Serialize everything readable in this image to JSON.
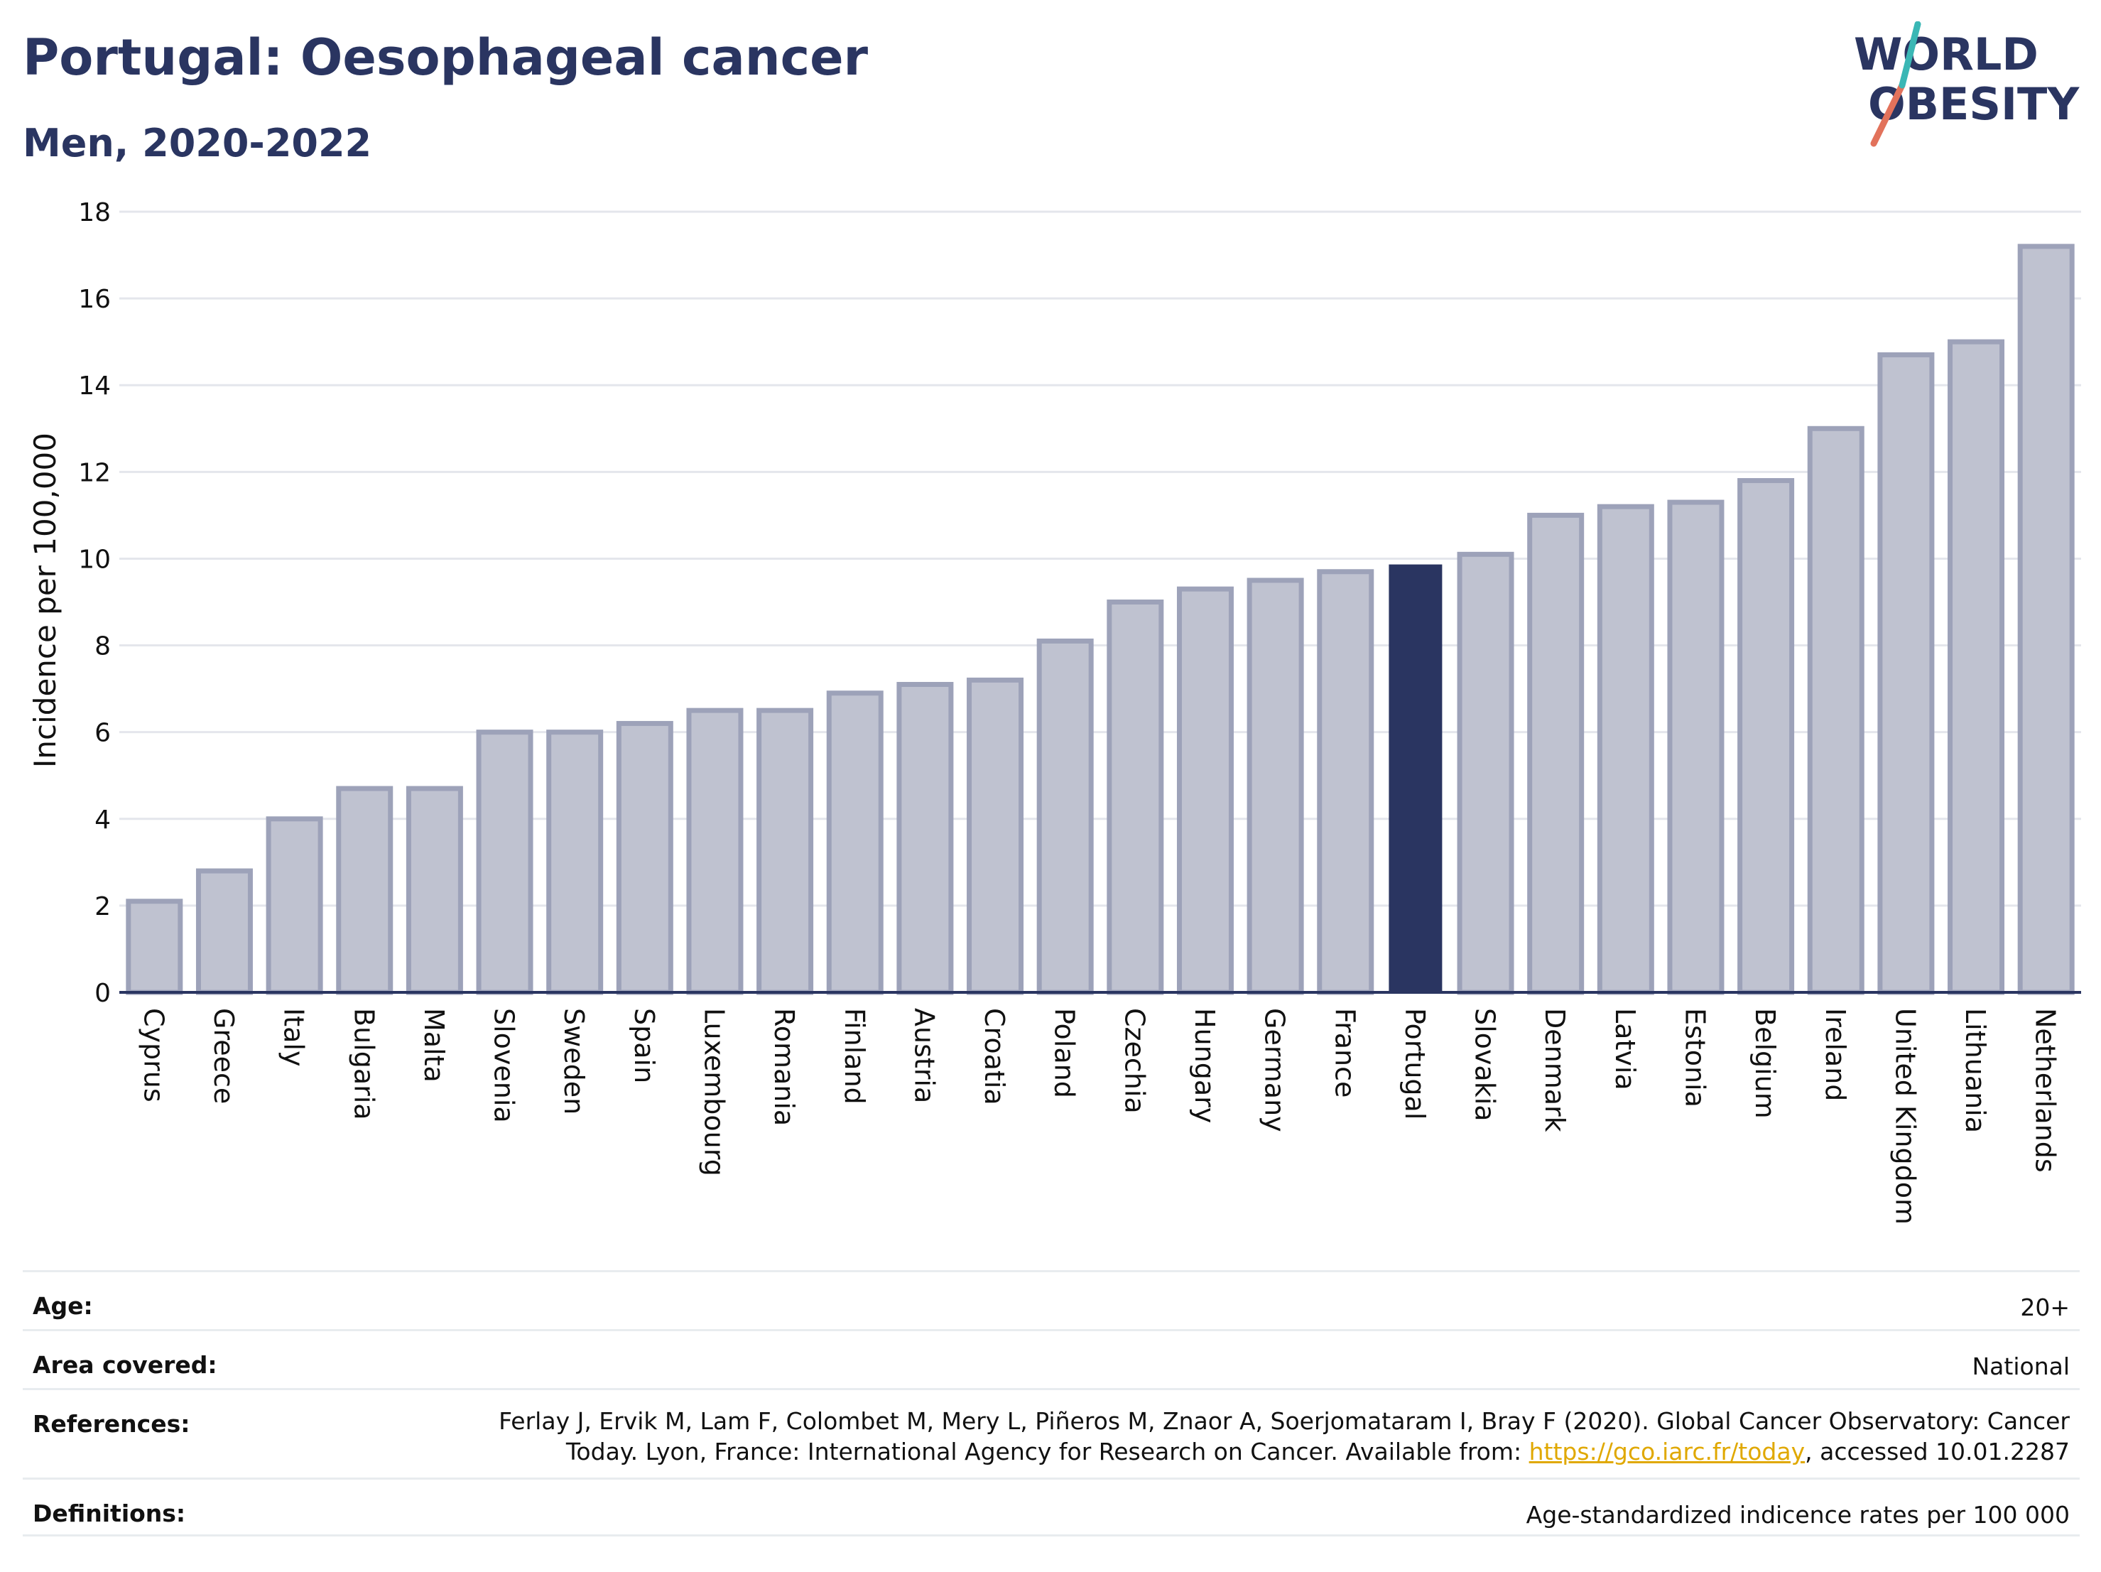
{
  "header": {
    "title": "Portugal: Oesophageal cancer",
    "subtitle": "Men, 2020-2022"
  },
  "logo": {
    "line1": "WORLD",
    "line2": "OBESITY",
    "colors": [
      "#2a3561",
      "#e2725b",
      "#3ab7b5"
    ]
  },
  "chart_data": {
    "type": "bar",
    "ylabel": "Incidence per 100,000",
    "xlabel": "",
    "ylim": [
      0,
      18
    ],
    "yticks": [
      0,
      2,
      4,
      6,
      8,
      10,
      12,
      14,
      16,
      18
    ],
    "grid": true,
    "highlight": "Portugal",
    "colors": {
      "bar": "#bfc2d0",
      "bar_edge": "#9da2b9",
      "highlight": "#2a3561",
      "grid": "#e4e6ec",
      "axis": "#2a3561"
    },
    "categories": [
      "Cyprus",
      "Greece",
      "Italy",
      "Bulgaria",
      "Malta",
      "Slovenia",
      "Sweden",
      "Spain",
      "Luxembourg",
      "Romania",
      "Finland",
      "Austria",
      "Croatia",
      "Poland",
      "Czechia",
      "Hungary",
      "Germany",
      "France",
      "Portugal",
      "Slovakia",
      "Denmark",
      "Latvia",
      "Estonia",
      "Belgium",
      "Ireland",
      "United Kingdom",
      "Lithuania",
      "Netherlands"
    ],
    "values": [
      2.1,
      2.8,
      4.0,
      4.7,
      4.7,
      6.0,
      6.0,
      6.2,
      6.5,
      6.5,
      6.9,
      7.1,
      7.2,
      8.1,
      9.0,
      9.3,
      9.5,
      9.7,
      9.85,
      10.1,
      11.0,
      11.2,
      11.3,
      11.8,
      13.0,
      14.7,
      15.0,
      17.2
    ]
  },
  "info": {
    "age_label": "Age:",
    "age_value": "20+",
    "area_label": "Area covered:",
    "area_value": "National",
    "references_label": "References:",
    "references_line1": "Ferlay J, Ervik M, Lam F, Colombet M, Mery L, Piñeros M, Znaor A, Soerjomataram I, Bray F (2020). Global Cancer Observatory: Cancer",
    "references_line2_pre": "Today. Lyon, France: International Agency for Research on Cancer. Available from: ",
    "references_link": "https://gco.iarc.fr/today",
    "references_line2_post": ", accessed 10.01.2287",
    "definitions_label": "Definitions:",
    "definitions_value": "Age-standardized indicence rates per 100 000"
  }
}
